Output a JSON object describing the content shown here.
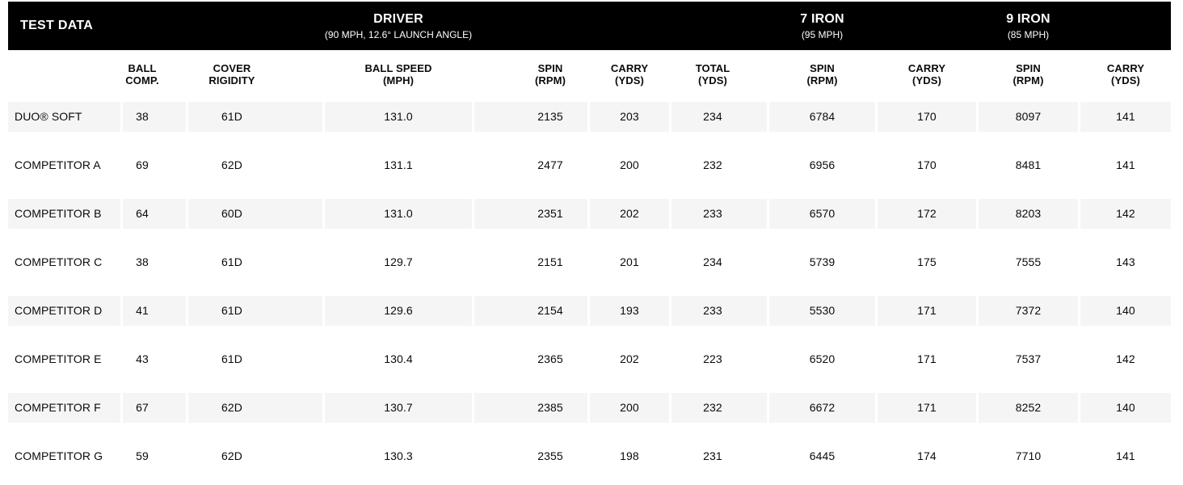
{
  "chart_data": {
    "type": "table",
    "title": "TEST DATA",
    "column_groups": [
      {
        "label": "DRIVER",
        "subtitle": "(90 MPH, 12.6° LAUNCH ANGLE)",
        "columns": [
          "BALL SPEED (MPH)",
          "SPIN (RPM)",
          "CARRY (YDS)",
          "TOTAL (YDS)"
        ]
      },
      {
        "label": "7 IRON",
        "subtitle": "(95 MPH)",
        "columns": [
          "SPIN (RPM)",
          "CARRY (YDS)"
        ]
      },
      {
        "label": "9 IRON",
        "subtitle": "(85 MPH)",
        "columns": [
          "SPIN (RPM)",
          "CARRY (YDS)"
        ]
      }
    ],
    "columns": [
      {
        "line1": "BALL",
        "line2": "COMP."
      },
      {
        "line1": "COVER",
        "line2": "RIGIDITY"
      },
      {
        "line1": "BALL SPEED",
        "line2": "(MPH)"
      },
      {
        "line1": "SPIN",
        "line2": "(RPM)"
      },
      {
        "line1": "CARRY",
        "line2": "(YDS)"
      },
      {
        "line1": "TOTAL",
        "line2": "(YDS)"
      },
      {
        "line1": "SPIN",
        "line2": "(RPM)"
      },
      {
        "line1": "CARRY",
        "line2": "(YDS)"
      },
      {
        "line1": "SPIN",
        "line2": "(RPM)"
      },
      {
        "line1": "CARRY",
        "line2": "(YDS)"
      }
    ],
    "rows": [
      {
        "name": "DUO® SOFT",
        "values": [
          "38",
          "61D",
          "131.0",
          "2135",
          "203",
          "234",
          "6784",
          "170",
          "8097",
          "141"
        ]
      },
      {
        "name": "COMPETITOR A",
        "values": [
          "69",
          "62D",
          "131.1",
          "2477",
          "200",
          "232",
          "6956",
          "170",
          "8481",
          "141"
        ]
      },
      {
        "name": "COMPETITOR B",
        "values": [
          "64",
          "60D",
          "131.0",
          "2351",
          "202",
          "233",
          "6570",
          "172",
          "8203",
          "142"
        ]
      },
      {
        "name": "COMPETITOR C",
        "values": [
          "38",
          "61D",
          "129.7",
          "2151",
          "201",
          "234",
          "5739",
          "175",
          "7555",
          "143"
        ]
      },
      {
        "name": "COMPETITOR D",
        "values": [
          "41",
          "61D",
          "129.6",
          "2154",
          "193",
          "233",
          "5530",
          "171",
          "7372",
          "140"
        ]
      },
      {
        "name": "COMPETITOR E",
        "values": [
          "43",
          "61D",
          "130.4",
          "2365",
          "202",
          "223",
          "6520",
          "171",
          "7537",
          "142"
        ]
      },
      {
        "name": "COMPETITOR F",
        "values": [
          "67",
          "62D",
          "130.7",
          "2385",
          "200",
          "232",
          "6672",
          "171",
          "8252",
          "140"
        ]
      },
      {
        "name": "COMPETITOR G",
        "values": [
          "59",
          "62D",
          "130.3",
          "2355",
          "198",
          "231",
          "6445",
          "174",
          "7710",
          "141"
        ]
      }
    ],
    "layout": {
      "stripe_rows": "odd rows (1st, 3rd, 5th, 7th) have light gray cell bands",
      "grid": "no visible borders; 3px white gaps between striped cells"
    }
  },
  "colors": {
    "header_bg": "#000000",
    "header_text": "#ffffff",
    "stripe_bg": "#f5f5f5",
    "text": "#0a0a0a"
  }
}
